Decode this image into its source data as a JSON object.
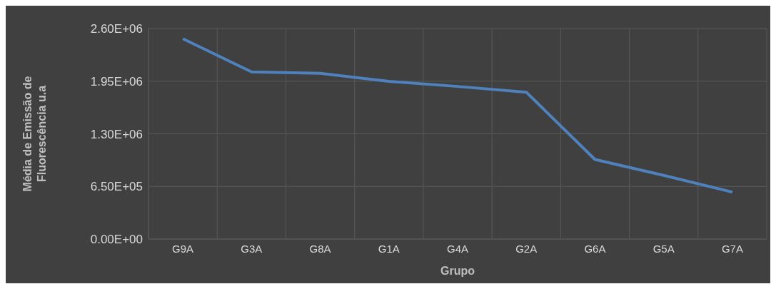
{
  "chart_data": {
    "type": "line",
    "xlabel": "Grupo",
    "ylabel": "Média de Emissão de Fluorescência u.a",
    "categories": [
      "G9A",
      "G3A",
      "G8A",
      "G1A",
      "G4A",
      "G2A",
      "G6A",
      "G5A",
      "G7A"
    ],
    "series": [
      {
        "color": "#4f81bd",
        "values": [
          2475000,
          2064000,
          2046000,
          1948000,
          1885000,
          1814000,
          983000,
          786000,
          580000
        ]
      }
    ],
    "ylim": [
      0,
      2600000
    ],
    "yticks": [
      {
        "value": 0,
        "label": "0.00E+00"
      },
      {
        "value": 650000,
        "label": "6.50E+05"
      },
      {
        "value": 1300000,
        "label": "1.30E+06"
      },
      {
        "value": 1950000,
        "label": "1.95E+06"
      },
      {
        "value": 2600000,
        "label": "2.60E+06"
      }
    ],
    "grid": true,
    "marker": "none",
    "line_style": "solid"
  }
}
